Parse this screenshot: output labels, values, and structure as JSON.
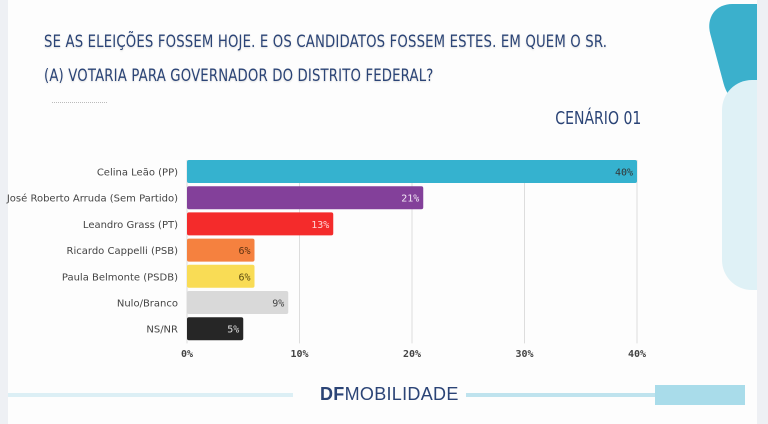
{
  "title_line1": "SE AS ELEIÇÕES FOSSEM HOJE. E OS CANDIDATOS FOSSEM ESTES. EM QUEM O SR.",
  "title_line2": "(A) VOTARIA PARA GOVERNADOR DO DISTRITO FEDERAL?",
  "scenario": "CENÁRIO 01",
  "logo": {
    "bold": "DF",
    "rest": "MOBILIDADE"
  },
  "chart_data": {
    "type": "bar",
    "orientation": "horizontal",
    "categories": [
      "Celina Leão (PP)",
      "José Roberto Arruda (Sem Partido)",
      "Leandro Grass (PT)",
      "Ricardo Cappelli (PSB)",
      "Paula Belmonte (PSDB)",
      "Nulo/Branco",
      "NS/NR"
    ],
    "values": [
      40,
      21,
      13,
      6,
      6,
      9,
      5
    ],
    "value_labels": [
      "40%",
      "21%",
      "13%",
      "6%",
      "6%",
      "9%",
      "5%"
    ],
    "colors": [
      "#35b2cf",
      "#83409a",
      "#f42b2b",
      "#f5813f",
      "#f9dc55",
      "#d9d9d9",
      "#262626"
    ],
    "label_colors": [
      "#333333",
      "#f2e6f5",
      "#ffd6d6",
      "#5a3010",
      "#5a4a10",
      "#444444",
      "#dddddd"
    ],
    "xlim": [
      0,
      40
    ],
    "xticks": [
      "0%",
      "10%",
      "20%",
      "30%",
      "40%"
    ],
    "grid": true
  }
}
